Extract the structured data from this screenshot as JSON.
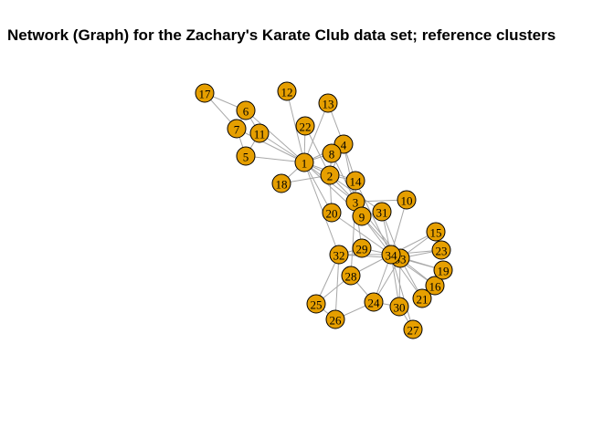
{
  "title": "Network (Graph) for the Zachary's Karate Club data set; reference clusters",
  "nodes": [
    {
      "id": "1",
      "label": "1"
    },
    {
      "id": "2",
      "label": "2"
    },
    {
      "id": "3",
      "label": "3"
    },
    {
      "id": "4",
      "label": "4"
    },
    {
      "id": "5",
      "label": "5"
    },
    {
      "id": "6",
      "label": "6"
    },
    {
      "id": "7",
      "label": "7"
    },
    {
      "id": "8",
      "label": "8"
    },
    {
      "id": "9",
      "label": "9"
    },
    {
      "id": "10",
      "label": "10"
    },
    {
      "id": "11",
      "label": "11"
    },
    {
      "id": "12",
      "label": "12"
    },
    {
      "id": "13",
      "label": "13"
    },
    {
      "id": "14",
      "label": "14"
    },
    {
      "id": "15",
      "label": "15"
    },
    {
      "id": "16",
      "label": "16"
    },
    {
      "id": "17",
      "label": "17"
    },
    {
      "id": "18",
      "label": "18"
    },
    {
      "id": "19",
      "label": "19"
    },
    {
      "id": "20",
      "label": "20"
    },
    {
      "id": "21",
      "label": "21"
    },
    {
      "id": "22",
      "label": "22"
    },
    {
      "id": "23",
      "label": "23"
    },
    {
      "id": "24",
      "label": "24"
    },
    {
      "id": "25",
      "label": "25"
    },
    {
      "id": "26",
      "label": "26"
    },
    {
      "id": "27",
      "label": "27"
    },
    {
      "id": "28",
      "label": "28"
    },
    {
      "id": "29",
      "label": "29"
    },
    {
      "id": "30",
      "label": "30"
    },
    {
      "id": "31",
      "label": "31"
    },
    {
      "id": "32",
      "label": "32"
    },
    {
      "id": "33",
      "label": "33"
    },
    {
      "id": "34",
      "label": "34"
    }
  ],
  "edges": [
    [
      "1",
      "2"
    ],
    [
      "1",
      "3"
    ],
    [
      "1",
      "4"
    ],
    [
      "1",
      "5"
    ],
    [
      "1",
      "6"
    ],
    [
      "1",
      "7"
    ],
    [
      "1",
      "8"
    ],
    [
      "1",
      "9"
    ],
    [
      "1",
      "11"
    ],
    [
      "1",
      "12"
    ],
    [
      "1",
      "13"
    ],
    [
      "1",
      "14"
    ],
    [
      "1",
      "18"
    ],
    [
      "1",
      "20"
    ],
    [
      "1",
      "22"
    ],
    [
      "1",
      "32"
    ],
    [
      "2",
      "3"
    ],
    [
      "2",
      "4"
    ],
    [
      "2",
      "8"
    ],
    [
      "2",
      "14"
    ],
    [
      "2",
      "18"
    ],
    [
      "2",
      "20"
    ],
    [
      "2",
      "22"
    ],
    [
      "2",
      "31"
    ],
    [
      "3",
      "4"
    ],
    [
      "3",
      "8"
    ],
    [
      "3",
      "9"
    ],
    [
      "3",
      "10"
    ],
    [
      "3",
      "14"
    ],
    [
      "3",
      "28"
    ],
    [
      "3",
      "29"
    ],
    [
      "3",
      "33"
    ],
    [
      "4",
      "8"
    ],
    [
      "4",
      "13"
    ],
    [
      "4",
      "14"
    ],
    [
      "5",
      "7"
    ],
    [
      "5",
      "11"
    ],
    [
      "6",
      "7"
    ],
    [
      "6",
      "11"
    ],
    [
      "6",
      "17"
    ],
    [
      "7",
      "17"
    ],
    [
      "9",
      "31"
    ],
    [
      "9",
      "33"
    ],
    [
      "9",
      "34"
    ],
    [
      "10",
      "34"
    ],
    [
      "14",
      "34"
    ],
    [
      "15",
      "33"
    ],
    [
      "15",
      "34"
    ],
    [
      "16",
      "33"
    ],
    [
      "16",
      "34"
    ],
    [
      "19",
      "33"
    ],
    [
      "19",
      "34"
    ],
    [
      "20",
      "34"
    ],
    [
      "21",
      "33"
    ],
    [
      "21",
      "34"
    ],
    [
      "23",
      "33"
    ],
    [
      "23",
      "34"
    ],
    [
      "24",
      "26"
    ],
    [
      "24",
      "28"
    ],
    [
      "24",
      "30"
    ],
    [
      "24",
      "33"
    ],
    [
      "24",
      "34"
    ],
    [
      "25",
      "26"
    ],
    [
      "25",
      "28"
    ],
    [
      "25",
      "32"
    ],
    [
      "26",
      "32"
    ],
    [
      "27",
      "30"
    ],
    [
      "27",
      "34"
    ],
    [
      "28",
      "34"
    ],
    [
      "29",
      "32"
    ],
    [
      "29",
      "34"
    ],
    [
      "30",
      "33"
    ],
    [
      "30",
      "34"
    ],
    [
      "31",
      "33"
    ],
    [
      "31",
      "34"
    ],
    [
      "32",
      "33"
    ],
    [
      "32",
      "34"
    ],
    [
      "33",
      "34"
    ]
  ],
  "colors": {
    "node_fill": "#e69f00",
    "node_stroke": "#000000",
    "edge": "#a8a8a8"
  }
}
